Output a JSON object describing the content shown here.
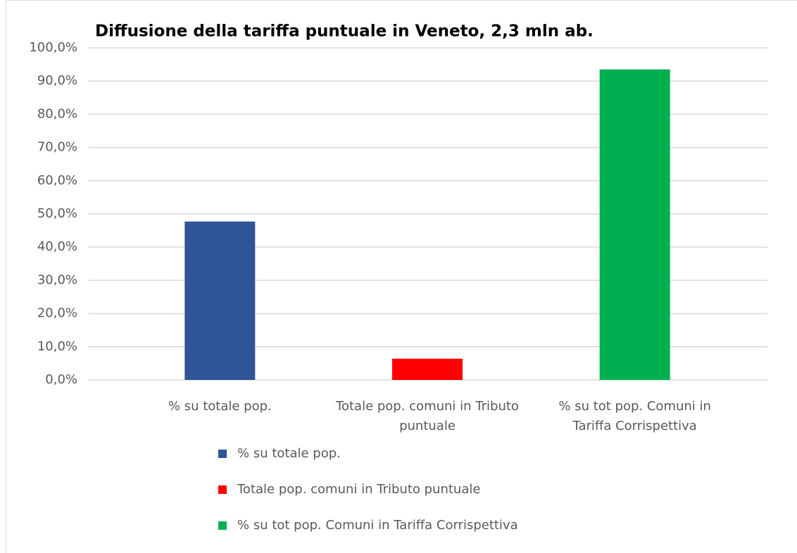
{
  "chart_data": {
    "type": "bar",
    "title": "Diffusione della tariffa puntuale in Veneto, 2,3 mln ab.",
    "categories": [
      "% su totale pop.",
      "Totale pop. comuni in Tributo puntuale",
      "% su tot pop. Comuni in Tariffa Corrispettiva"
    ],
    "values": [
      47.7,
      6.4,
      93.5
    ],
    "colors": [
      "#2f5597",
      "#ff0000",
      "#00b050"
    ],
    "ylim": [
      0,
      100
    ],
    "yticks": [
      {
        "value": 0,
        "label": "0,0%"
      },
      {
        "value": 10,
        "label": "10,0%"
      },
      {
        "value": 20,
        "label": "20,0%"
      },
      {
        "value": 30,
        "label": "30,0%"
      },
      {
        "value": 40,
        "label": "40,0%"
      },
      {
        "value": 50,
        "label": "50,0%"
      },
      {
        "value": 60,
        "label": "60,0%"
      },
      {
        "value": 70,
        "label": "70,0%"
      },
      {
        "value": 80,
        "label": "80,0%"
      },
      {
        "value": 90,
        "label": "90,0%"
      },
      {
        "value": 100,
        "label": "100,0%"
      }
    ],
    "grid": true
  }
}
